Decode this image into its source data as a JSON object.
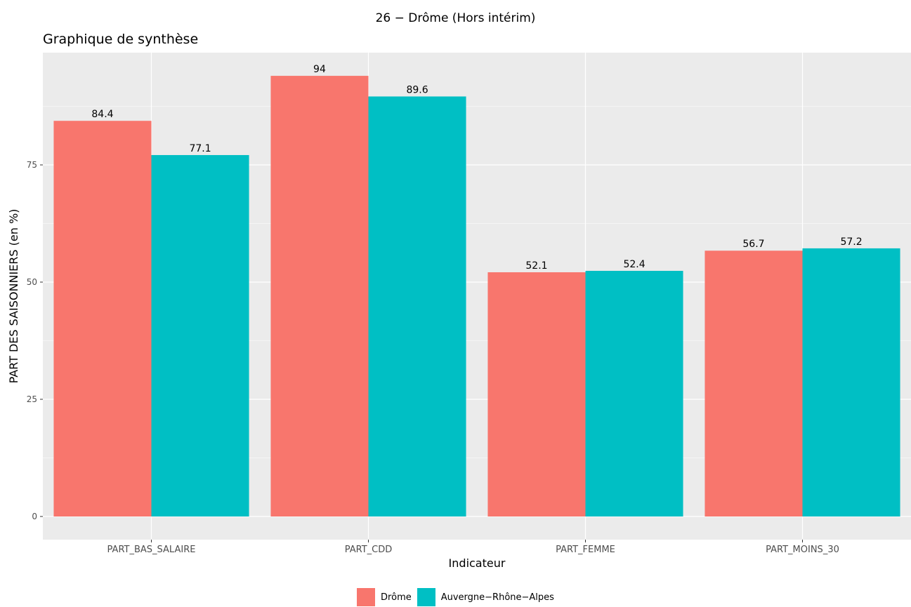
{
  "chart_data": {
    "type": "bar",
    "title": "26 − Drôme (Hors intérim)",
    "subtitle": "Graphique de synthèse",
    "xlabel": "Indicateur",
    "ylabel": "PART DES SAISONNIERS (en %)",
    "categories": [
      "PART_BAS_SALAIRE",
      "PART_CDD",
      "PART_FEMME",
      "PART_MOINS_30"
    ],
    "series": [
      {
        "name": "Drôme",
        "color": "#F8766D",
        "values": [
          84.4,
          94,
          52.1,
          56.7
        ]
      },
      {
        "name": "Auvergne−Rhône−Alpes",
        "color": "#00BFC4",
        "values": [
          77.1,
          89.6,
          52.4,
          57.2
        ]
      }
    ],
    "ylim": [
      0,
      98.7
    ],
    "yticks": [
      0,
      25,
      50,
      75
    ],
    "grid": true,
    "legend_position": "bottom",
    "panel_background": "#EBEBEB"
  }
}
